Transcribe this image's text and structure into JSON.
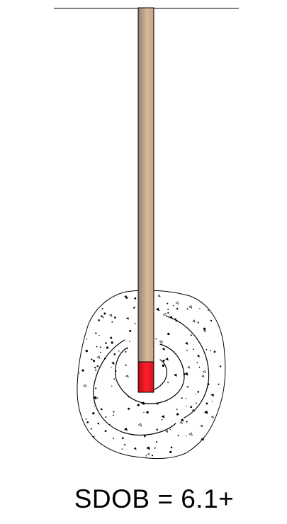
{
  "caption": "SDOB = 6.1+",
  "colors": {
    "rod_dark": "#8c7e72",
    "rod_light": "#d8b79a",
    "charge": "#e8121f",
    "ink": "#000000",
    "background": "#ffffff"
  },
  "icons": {
    "grout": "speckled-concrete-blob",
    "swirl": "spiral-line"
  }
}
